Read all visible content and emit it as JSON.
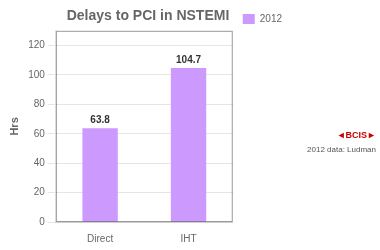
{
  "chart_data": {
    "type": "bar",
    "title": "Delays to PCI in NSTEMI",
    "categories": [
      "Direct",
      "IHT"
    ],
    "series": [
      {
        "name": "2012",
        "color": "#CC99FF",
        "values": [
          63.8,
          104.7
        ]
      }
    ],
    "ylabel": "Hrs",
    "ylim": [
      0,
      130
    ],
    "yticks": [
      0,
      20,
      40,
      60,
      80,
      100,
      120
    ],
    "grid": true,
    "legend": "right",
    "data_labels": true,
    "annotations": [
      "◄BCIS►",
      "2012 data: Ludman"
    ]
  }
}
